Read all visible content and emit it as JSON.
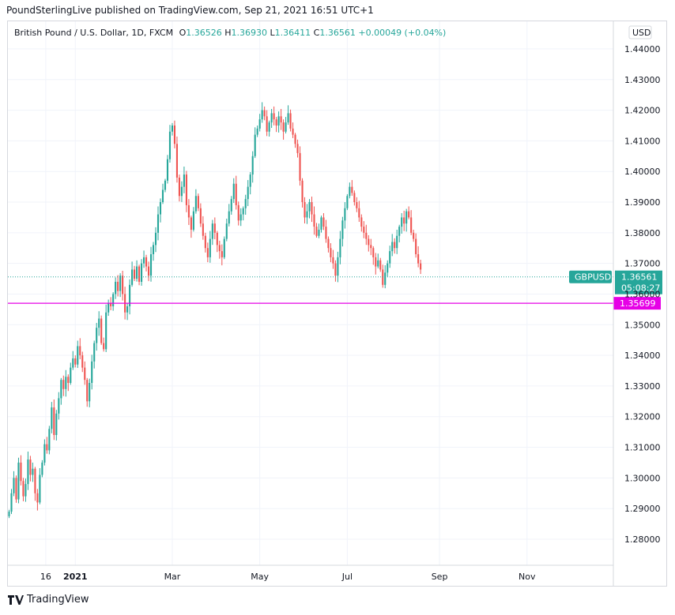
{
  "header": "PoundSterlingLive published on TradingView.com, Sep 21, 2021 16:51 UTC+1",
  "legend": {
    "symbol": "British Pound / U.S. Dollar, 1D, FXCM",
    "open_label": "O",
    "open": "1.36526",
    "high_label": "H",
    "high": "1.36930",
    "low_label": "L",
    "low": "1.36411",
    "close_label": "C",
    "close": "1.36561",
    "change": "+0.00049 (+0.04%)"
  },
  "footer": {
    "brand": "TradingView"
  },
  "colors": {
    "up": "#26a69a",
    "down": "#ef5350",
    "support": "#e600e6",
    "grid": "#f0f3fa",
    "price_tag": "#26a69a"
  },
  "chart_data": {
    "type": "candlestick",
    "symbol": "GBPUSD",
    "timeframe": "1D",
    "currency_label": "USD",
    "y_range": [
      1.2715,
      1.449
    ],
    "y_ticks": [
      "1.28000",
      "1.29000",
      "1.30000",
      "1.31000",
      "1.32000",
      "1.33000",
      "1.34000",
      "1.35000",
      "1.36000",
      "1.37000",
      "1.38000",
      "1.39000",
      "1.40000",
      "1.41000",
      "1.42000",
      "1.43000",
      "1.44000"
    ],
    "x_ticks": [
      {
        "label": "16",
        "index": 15.5,
        "bold": false
      },
      {
        "label": "2021",
        "index": 28,
        "bold": true
      },
      {
        "label": "Mar",
        "index": 69,
        "bold": false
      },
      {
        "label": "May",
        "index": 106,
        "bold": false
      },
      {
        "label": "Jul",
        "index": 143,
        "bold": false
      },
      {
        "label": "Sep",
        "index": 182,
        "bold": false
      },
      {
        "label": "Nov",
        "index": 219,
        "bold": false
      }
    ],
    "total_bars": 256,
    "last_price": {
      "symbol": "GBPUSD",
      "value": "1.36561",
      "countdown": "05:08:27",
      "price": 1.36561
    },
    "support": {
      "value": "1.35699",
      "price": 1.35699
    },
    "closes": [
      1.289,
      1.295,
      1.3,
      1.293,
      1.305,
      1.299,
      1.294,
      1.298,
      1.306,
      1.301,
      1.303,
      1.295,
      1.292,
      1.301,
      1.305,
      1.311,
      1.309,
      1.316,
      1.323,
      1.314,
      1.321,
      1.326,
      1.332,
      1.329,
      1.333,
      1.331,
      1.336,
      1.339,
      1.337,
      1.343,
      1.34,
      1.336,
      1.332,
      1.325,
      1.331,
      1.338,
      1.344,
      1.349,
      1.352,
      1.344,
      1.342,
      1.354,
      1.357,
      1.356,
      1.36,
      1.364,
      1.361,
      1.366,
      1.36,
      1.354,
      1.356,
      1.363,
      1.368,
      1.365,
      1.369,
      1.364,
      1.37,
      1.372,
      1.369,
      1.366,
      1.373,
      1.376,
      1.38,
      1.386,
      1.39,
      1.394,
      1.397,
      1.404,
      1.413,
      1.415,
      1.409,
      1.398,
      1.392,
      1.395,
      1.399,
      1.389,
      1.385,
      1.381,
      1.387,
      1.392,
      1.388,
      1.383,
      1.379,
      1.375,
      1.372,
      1.378,
      1.383,
      1.38,
      1.376,
      1.374,
      1.372,
      1.378,
      1.383,
      1.387,
      1.391,
      1.396,
      1.389,
      1.384,
      1.386,
      1.388,
      1.391,
      1.395,
      1.399,
      1.405,
      1.412,
      1.414,
      1.417,
      1.42,
      1.418,
      1.413,
      1.416,
      1.419,
      1.417,
      1.415,
      1.418,
      1.416,
      1.413,
      1.416,
      1.419,
      1.414,
      1.412,
      1.409,
      1.406,
      1.397,
      1.39,
      1.385,
      1.387,
      1.39,
      1.386,
      1.382,
      1.379,
      1.381,
      1.385,
      1.382,
      1.378,
      1.375,
      1.372,
      1.37,
      1.366,
      1.372,
      1.378,
      1.384,
      1.388,
      1.392,
      1.395,
      1.393,
      1.39,
      1.388,
      1.385,
      1.382,
      1.38,
      1.378,
      1.376,
      1.375,
      1.372,
      1.369,
      1.371,
      1.368,
      1.363,
      1.367,
      1.37,
      1.374,
      1.377,
      1.375,
      1.379,
      1.382,
      1.385,
      1.383,
      1.387,
      1.385,
      1.38,
      1.378,
      1.373,
      1.37,
      1.368
    ]
  }
}
